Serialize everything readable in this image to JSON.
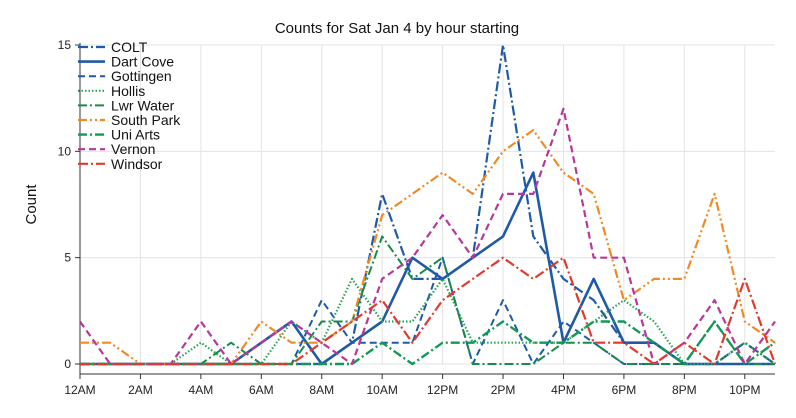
{
  "chart_data": {
    "type": "line",
    "title": "Counts for Sat Jan 4 by hour starting",
    "xlabel": "",
    "ylabel": "Count",
    "xlim": [
      0,
      23
    ],
    "ylim": [
      0,
      15
    ],
    "x_ticks": [
      {
        "value": 0,
        "label": "12AM"
      },
      {
        "value": 2,
        "label": "2AM"
      },
      {
        "value": 4,
        "label": "4AM"
      },
      {
        "value": 6,
        "label": "6AM"
      },
      {
        "value": 8,
        "label": "8AM"
      },
      {
        "value": 10,
        "label": "10AM"
      },
      {
        "value": 12,
        "label": "12PM"
      },
      {
        "value": 14,
        "label": "2PM"
      },
      {
        "value": 16,
        "label": "4PM"
      },
      {
        "value": 18,
        "label": "6PM"
      },
      {
        "value": 20,
        "label": "8PM"
      },
      {
        "value": 22,
        "label": "10PM"
      }
    ],
    "y_ticks": [
      0,
      5,
      10,
      15
    ],
    "grid": true,
    "legend_position": "top-left",
    "x": [
      0,
      1,
      2,
      3,
      4,
      5,
      6,
      7,
      8,
      9,
      10,
      11,
      12,
      13,
      14,
      15,
      16,
      17,
      18,
      19,
      20,
      21,
      22,
      23
    ],
    "series": [
      {
        "name": "COLT",
        "color": "#1f5aa6",
        "dash": "10,3,2,3",
        "width": 2.2,
        "values": [
          0,
          0,
          0,
          0,
          0,
          0,
          0,
          0,
          0,
          1,
          8,
          4,
          4,
          5,
          15,
          6,
          4,
          3,
          1,
          1,
          0,
          0,
          1,
          0
        ]
      },
      {
        "name": "Dart Cove",
        "color": "#1f5aa6",
        "dash": "",
        "width": 2.6,
        "values": [
          0,
          0,
          0,
          0,
          0,
          0,
          1,
          2,
          0,
          1,
          2,
          5,
          4,
          5,
          6,
          9,
          1,
          4,
          1,
          1,
          0,
          0,
          0,
          0
        ]
      },
      {
        "name": "Gottingen",
        "color": "#1f5aa6",
        "dash": "7,4",
        "width": 2.0,
        "values": [
          0,
          0,
          0,
          0,
          0,
          0,
          0,
          0,
          3,
          1,
          1,
          1,
          5,
          0,
          3,
          0,
          2,
          1,
          0,
          0,
          0,
          0,
          0,
          0
        ]
      },
      {
        "name": "Hollis",
        "color": "#2aa353",
        "dash": "1.5,2",
        "width": 2.2,
        "values": [
          0,
          0,
          0,
          0,
          1,
          0,
          0,
          2,
          1,
          4,
          2,
          2,
          4,
          1,
          1,
          1,
          1,
          2,
          3,
          2,
          0,
          0,
          1,
          0
        ]
      },
      {
        "name": "Lwr Water",
        "color": "#1a8a4a",
        "dash": "9,3,2,3",
        "width": 2.0,
        "values": [
          0,
          0,
          0,
          0,
          0,
          1,
          0,
          0,
          2,
          2,
          6,
          4,
          5,
          0,
          0,
          0,
          1,
          1,
          0,
          0,
          0,
          2,
          0,
          0
        ]
      },
      {
        "name": "South Park",
        "color": "#f08a24",
        "dash": "9,3,2,3,2,3",
        "width": 2.2,
        "values": [
          1,
          1,
          0,
          0,
          0,
          0,
          2,
          1,
          1,
          2,
          7,
          8,
          9,
          8,
          10,
          11,
          9,
          8,
          3,
          4,
          4,
          8,
          2,
          1
        ]
      },
      {
        "name": "Uni Arts",
        "color": "#119a55",
        "dash": "9,3,2,3",
        "width": 2.4,
        "values": [
          0,
          0,
          0,
          0,
          0,
          0,
          0,
          0,
          0,
          0,
          1,
          0,
          1,
          1,
          2,
          1,
          1,
          2,
          2,
          1,
          0,
          2,
          0,
          1
        ]
      },
      {
        "name": "Vernon",
        "color": "#b8379b",
        "dash": "7,4",
        "width": 2.2,
        "values": [
          2,
          0,
          0,
          0,
          2,
          0,
          1,
          2,
          1,
          0,
          4,
          5,
          7,
          5,
          8,
          8,
          12,
          5,
          5,
          0,
          1,
          3,
          0,
          2
        ]
      },
      {
        "name": "Windsor",
        "color": "#e03a2e",
        "dash": "10,3,2,3",
        "width": 2.2,
        "values": [
          0,
          0,
          0,
          0,
          0,
          0,
          0,
          0,
          1,
          2,
          3,
          1,
          3,
          4,
          5,
          4,
          5,
          1,
          1,
          0,
          1,
          0,
          4,
          0
        ]
      }
    ]
  }
}
